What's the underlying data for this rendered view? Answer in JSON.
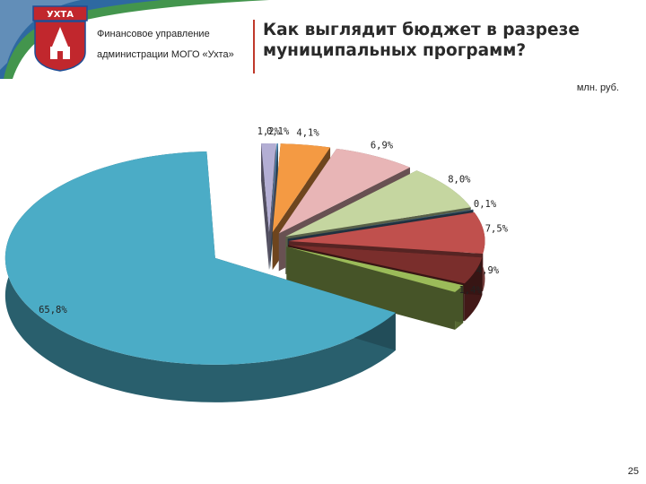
{
  "header": {
    "org_line1": "Финансовое управление",
    "org_line2": "администрации МОГО «Ухта»",
    "title": "Как выглядит бюджет в разрезе муниципальных программ?",
    "logo_text": "УХТА"
  },
  "unit": "млн. руб.",
  "page_number": "25",
  "colors": {
    "accent_line": "#c0392b",
    "banner_green": "#2f8a3a",
    "banner_blue": "#2a62b0"
  },
  "chart_data": {
    "type": "pie",
    "style": "3d exploded",
    "slices": [
      {
        "label": "0,1%",
        "value": 0.1,
        "color": "#4f8fbf"
      },
      {
        "label": "4,1%",
        "value": 4.1,
        "color": "#f49a43"
      },
      {
        "label": "6,9%",
        "value": 6.9,
        "color": "#e8b5b6"
      },
      {
        "label": "8,0%",
        "value": 8.0,
        "color": "#c5d6a0"
      },
      {
        "label": "0,1%",
        "value": 0.1,
        "color": "#4a6d8c"
      },
      {
        "label": "7,5%",
        "value": 7.5,
        "color": "#c0504d"
      },
      {
        "label": "4,9%",
        "value": 4.9,
        "color": "#7a2e2c"
      },
      {
        "label": "1,4%",
        "value": 1.4,
        "color": "#9bbb59"
      },
      {
        "label": "65,8%",
        "value": 65.8,
        "color": "#4bacc6"
      },
      {
        "label": "1,2%",
        "value": 1.2,
        "color": "#b3aed4"
      }
    ]
  }
}
